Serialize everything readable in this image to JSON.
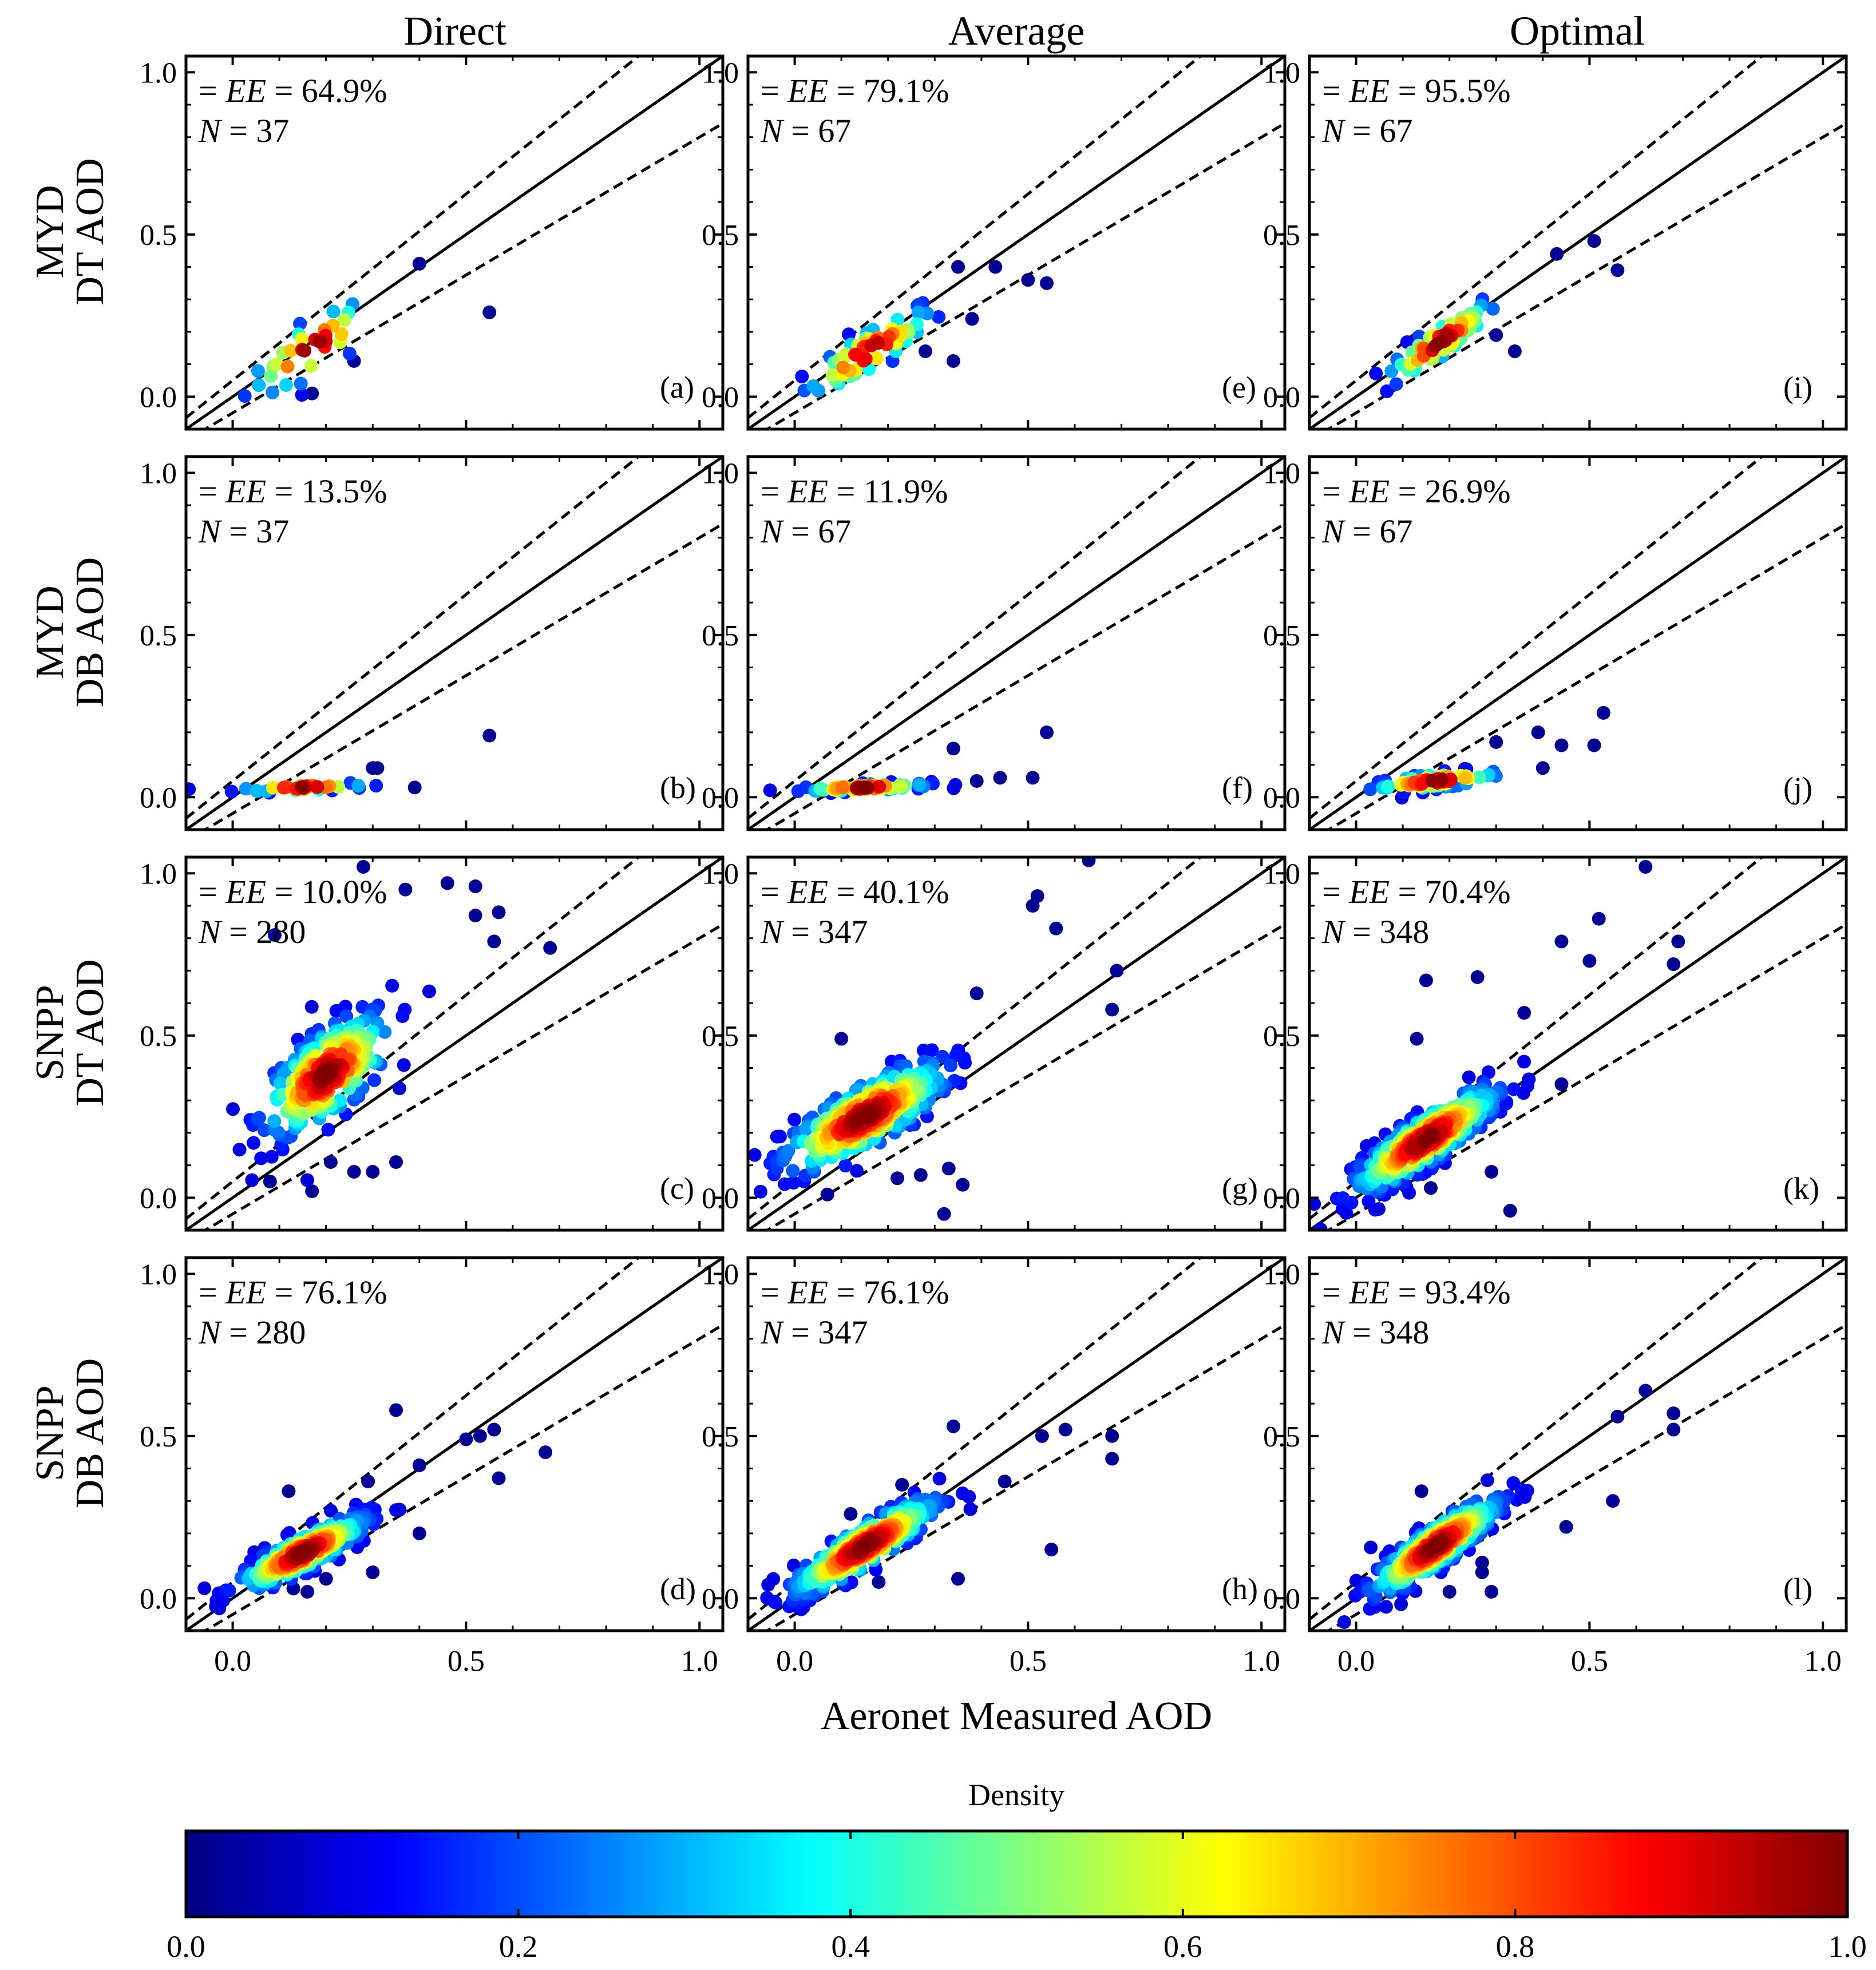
{
  "chart_data": {
    "type": "scatter",
    "columns": [
      "Direct",
      "Average",
      "Optimal"
    ],
    "rows": [
      [
        "MYD",
        "DT AOD"
      ],
      [
        "MYD",
        "DB AOD"
      ],
      [
        "SNPP",
        "DT AOD"
      ],
      [
        "SNPP",
        "DB AOD"
      ]
    ],
    "xlabel": "Aeronet Measured AOD",
    "xlim": [
      -0.1,
      1.05
    ],
    "ylim": [
      -0.1,
      1.05
    ],
    "ticks": [
      0.0,
      0.5,
      1.0
    ],
    "tick_labels": [
      "0.0",
      "0.5",
      "1.0"
    ],
    "reference_lines": {
      "one_to_one": "solid",
      "expected_error_envelope": "dashed",
      "ee_formula": "y = x ± (0.05 + 0.15x)"
    },
    "grid": false,
    "colormap": "jet",
    "colorbar": {
      "title": "Density",
      "range": [
        0.0,
        1.0
      ],
      "ticks": [
        "0.0",
        "0.2",
        "0.4",
        "0.6",
        "0.8",
        "1.0"
      ],
      "stops": [
        "#00007f",
        "#0000ff",
        "#007fff",
        "#00ffff",
        "#7fff7f",
        "#ffff00",
        "#ff7f00",
        "#ff0000",
        "#7f0000"
      ]
    },
    "ee_prefix": "EE",
    "n_prefix": "N",
    "panels": [
      {
        "letter": "(a)",
        "row": 0,
        "col": 0,
        "ee_value": " = 64.9%",
        "n_value": " = 37",
        "n": 37,
        "cx": 0.17,
        "cy": 0.15,
        "sx": 0.07,
        "sy": 0.08,
        "slope": 0.85,
        "outliers": [
          [
            0.55,
            0.26
          ],
          [
            0.17,
            0.01
          ],
          [
            0.26,
            0.11
          ],
          [
            0.4,
            0.41
          ]
        ]
      },
      {
        "letter": "(e)",
        "row": 0,
        "col": 1,
        "ee_value": " = 79.1%",
        "n_value": " = 67",
        "n": 67,
        "cx": 0.16,
        "cy": 0.14,
        "sx": 0.07,
        "sy": 0.06,
        "slope": 0.85,
        "outliers": [
          [
            0.5,
            0.36
          ],
          [
            0.54,
            0.35
          ],
          [
            0.43,
            0.4
          ],
          [
            0.35,
            0.4
          ],
          [
            0.38,
            0.24
          ],
          [
            0.34,
            0.11
          ],
          [
            0.28,
            0.14
          ]
        ]
      },
      {
        "letter": "(i)",
        "row": 0,
        "col": 2,
        "ee_value": " = 95.5%",
        "n_value": " = 67",
        "n": 67,
        "cx": 0.18,
        "cy": 0.17,
        "sx": 0.06,
        "sy": 0.05,
        "slope": 0.95,
        "outliers": [
          [
            0.51,
            0.48
          ],
          [
            0.56,
            0.39
          ],
          [
            0.43,
            0.44
          ],
          [
            0.34,
            0.14
          ],
          [
            0.3,
            0.19
          ]
        ]
      },
      {
        "letter": "(b)",
        "row": 1,
        "col": 0,
        "ee_value": " = 13.5%",
        "n_value": " = 37",
        "n": 37,
        "cx": 0.15,
        "cy": 0.03,
        "sx": 0.07,
        "sy": 0.01,
        "slope": 0.05,
        "outliers": [
          [
            0.55,
            0.19
          ],
          [
            0.39,
            0.03
          ],
          [
            0.3,
            0.09
          ],
          [
            0.31,
            0.09
          ]
        ]
      },
      {
        "letter": "(f)",
        "row": 1,
        "col": 1,
        "ee_value": " = 11.9%",
        "n_value": " = 67",
        "n": 67,
        "cx": 0.15,
        "cy": 0.03,
        "sx": 0.07,
        "sy": 0.01,
        "slope": 0.05,
        "outliers": [
          [
            0.54,
            0.2
          ],
          [
            0.34,
            0.15
          ],
          [
            0.51,
            0.06
          ],
          [
            0.44,
            0.06
          ],
          [
            0.39,
            0.05
          ]
        ]
      },
      {
        "letter": "(j)",
        "row": 1,
        "col": 2,
        "ee_value": " = 26.9%",
        "n_value": " = 67",
        "n": 67,
        "cx": 0.17,
        "cy": 0.05,
        "sx": 0.07,
        "sy": 0.02,
        "slope": 0.15,
        "outliers": [
          [
            0.53,
            0.26
          ],
          [
            0.51,
            0.16
          ],
          [
            0.44,
            0.16
          ],
          [
            0.39,
            0.2
          ],
          [
            0.3,
            0.17
          ],
          [
            0.4,
            0.09
          ]
        ]
      },
      {
        "letter": "(c)",
        "row": 2,
        "col": 0,
        "ee_value": " = 10.0%",
        "n_value": " = 280",
        "n": 280,
        "cx": 0.2,
        "cy": 0.38,
        "sx": 0.07,
        "sy": 0.12,
        "slope": 0.9,
        "outliers": [
          [
            0.28,
            1.02
          ],
          [
            0.46,
            0.97
          ],
          [
            0.37,
            0.95
          ],
          [
            0.52,
            0.96
          ],
          [
            0.57,
            0.88
          ],
          [
            0.52,
            0.87
          ],
          [
            0.56,
            0.79
          ],
          [
            0.68,
            0.77
          ],
          [
            0.09,
            0.81
          ],
          [
            0.08,
            0.05
          ],
          [
            0.17,
            0.02
          ],
          [
            0.26,
            0.08
          ],
          [
            0.3,
            0.08
          ],
          [
            0.35,
            0.11
          ],
          [
            0.21,
            0.11
          ]
        ]
      },
      {
        "letter": "(g)",
        "row": 2,
        "col": 1,
        "ee_value": " = 40.1%",
        "n_value": " = 347",
        "n": 347,
        "cx": 0.15,
        "cy": 0.25,
        "sx": 0.09,
        "sy": 0.09,
        "slope": 0.75,
        "outliers": [
          [
            0.63,
            1.04
          ],
          [
            0.52,
            0.93
          ],
          [
            0.51,
            0.9
          ],
          [
            0.56,
            0.83
          ],
          [
            0.69,
            0.7
          ],
          [
            0.68,
            0.58
          ],
          [
            0.39,
            0.63
          ],
          [
            0.1,
            0.49
          ],
          [
            0.27,
            0.07
          ],
          [
            0.33,
            0.09
          ],
          [
            0.36,
            0.04
          ],
          [
            0.32,
            -0.05
          ],
          [
            0.07,
            0.01
          ],
          [
            0.22,
            0.06
          ]
        ]
      },
      {
        "letter": "(k)",
        "row": 2,
        "col": 2,
        "ee_value": " = 70.4%",
        "n_value": " = 348",
        "n": 348,
        "cx": 0.15,
        "cy": 0.18,
        "sx": 0.08,
        "sy": 0.07,
        "slope": 0.9,
        "outliers": [
          [
            0.62,
            1.02
          ],
          [
            0.52,
            0.86
          ],
          [
            0.44,
            0.79
          ],
          [
            0.5,
            0.73
          ],
          [
            0.69,
            0.79
          ],
          [
            0.68,
            0.72
          ],
          [
            0.15,
            0.67
          ],
          [
            0.26,
            0.68
          ],
          [
            0.13,
            0.49
          ],
          [
            0.33,
            -0.04
          ],
          [
            0.16,
            0.03
          ],
          [
            0.29,
            0.08
          ],
          [
            0.44,
            0.35
          ],
          [
            0.36,
            0.57
          ]
        ]
      },
      {
        "letter": "(d)",
        "row": 3,
        "col": 0,
        "ee_value": " = 76.1%",
        "n_value": " = 280",
        "n": 280,
        "cx": 0.15,
        "cy": 0.14,
        "sx": 0.07,
        "sy": 0.05,
        "slope": 0.7,
        "outliers": [
          [
            0.35,
            0.58
          ],
          [
            0.67,
            0.45
          ],
          [
            0.56,
            0.52
          ],
          [
            0.53,
            0.5
          ],
          [
            0.5,
            0.49
          ],
          [
            0.57,
            0.37
          ],
          [
            0.4,
            0.41
          ],
          [
            0.12,
            0.33
          ],
          [
            0.29,
            0.36
          ],
          [
            0.2,
            0.06
          ],
          [
            0.16,
            0.02
          ],
          [
            0.13,
            0.03
          ],
          [
            0.3,
            0.08
          ],
          [
            0.4,
            0.2
          ]
        ]
      },
      {
        "letter": "(h)",
        "row": 3,
        "col": 1,
        "ee_value": " = 76.1%",
        "n_value": " = 347",
        "n": 347,
        "cx": 0.15,
        "cy": 0.16,
        "sx": 0.08,
        "sy": 0.06,
        "slope": 0.85,
        "outliers": [
          [
            0.34,
            0.53
          ],
          [
            0.53,
            0.5
          ],
          [
            0.58,
            0.52
          ],
          [
            0.68,
            0.5
          ],
          [
            0.68,
            0.43
          ],
          [
            0.55,
            0.15
          ],
          [
            0.23,
            0.35
          ],
          [
            0.35,
            0.06
          ],
          [
            0.18,
            0.05
          ],
          [
            0.12,
            0.26
          ],
          [
            0.45,
            0.36
          ]
        ]
      },
      {
        "letter": "(l)",
        "row": 3,
        "col": 2,
        "ee_value": " = 93.4%",
        "n_value": " = 348",
        "n": 348,
        "cx": 0.17,
        "cy": 0.16,
        "sx": 0.07,
        "sy": 0.06,
        "slope": 0.95,
        "outliers": [
          [
            0.62,
            0.64
          ],
          [
            0.68,
            0.57
          ],
          [
            0.68,
            0.52
          ],
          [
            0.56,
            0.56
          ],
          [
            0.55,
            0.3
          ],
          [
            0.27,
            0.08
          ],
          [
            0.29,
            0.02
          ],
          [
            0.2,
            0.02
          ],
          [
            0.14,
            0.33
          ],
          [
            0.27,
            0.11
          ],
          [
            0.45,
            0.22
          ]
        ]
      }
    ]
  }
}
